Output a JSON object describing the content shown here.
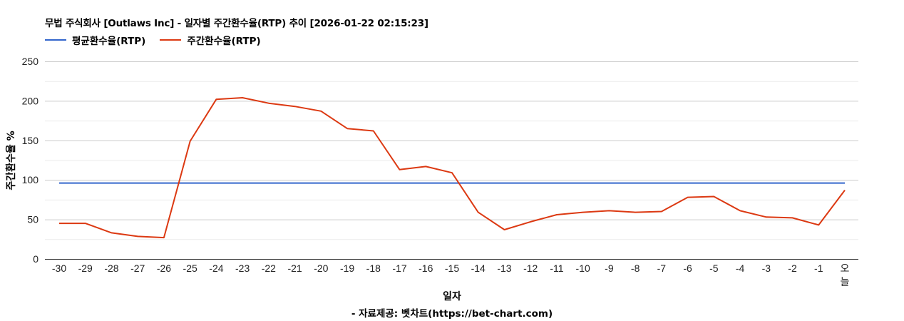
{
  "header": {
    "title": "무법 주식회사 [Outlaws Inc] - 일자별 주간환수율(RTP) 추이 [2026-01-22 02:15:23]"
  },
  "legend": [
    {
      "label": "평균환수율(RTP)",
      "color": "#3366cc"
    },
    {
      "label": "주간환수율(RTP)",
      "color": "#dc3912"
    }
  ],
  "axes": {
    "xlabel": "일자",
    "ylabel": "주간환수율 %",
    "source": "- 자료제공: 벳차트(https://bet-chart.com)"
  },
  "chart_data": {
    "type": "line",
    "title": "무법 주식회사 [Outlaws Inc] - 일자별 주간환수율(RTP) 추이 [2026-01-22 02:15:23]",
    "xlabel": "일자",
    "ylabel": "주간환수율 %",
    "ylim": [
      0,
      250
    ],
    "yticks": [
      0,
      50,
      100,
      150,
      200,
      250
    ],
    "grid": true,
    "legend_position": "top",
    "categories": [
      "-30",
      "-29",
      "-28",
      "-27",
      "-26",
      "-25",
      "-24",
      "-23",
      "-22",
      "-21",
      "-20",
      "-19",
      "-18",
      "-17",
      "-16",
      "-15",
      "-14",
      "-13",
      "-12",
      "-11",
      "-10",
      "-9",
      "-8",
      "-7",
      "-6",
      "-5",
      "-4",
      "-3",
      "-2",
      "-1",
      "오늘"
    ],
    "series": [
      {
        "name": "평균환수율(RTP)",
        "color": "#3366cc",
        "values": [
          96,
          96,
          96,
          96,
          96,
          96,
          96,
          96,
          96,
          96,
          96,
          96,
          96,
          96,
          96,
          96,
          96,
          96,
          96,
          96,
          96,
          96,
          96,
          96,
          96,
          96,
          96,
          96,
          96,
          96,
          96
        ]
      },
      {
        "name": "주간환수율(RTP)",
        "color": "#dc3912",
        "values": [
          45,
          45,
          33,
          28.5,
          27,
          149,
          202,
          204,
          197,
          193,
          187,
          165,
          162,
          113,
          117,
          109,
          59,
          37,
          47,
          56,
          59,
          61,
          59,
          60,
          78,
          79,
          61,
          53,
          52,
          43,
          87
        ]
      }
    ],
    "annotations": [
      "- 자료제공: 벳차트(https://bet-chart.com)"
    ]
  }
}
